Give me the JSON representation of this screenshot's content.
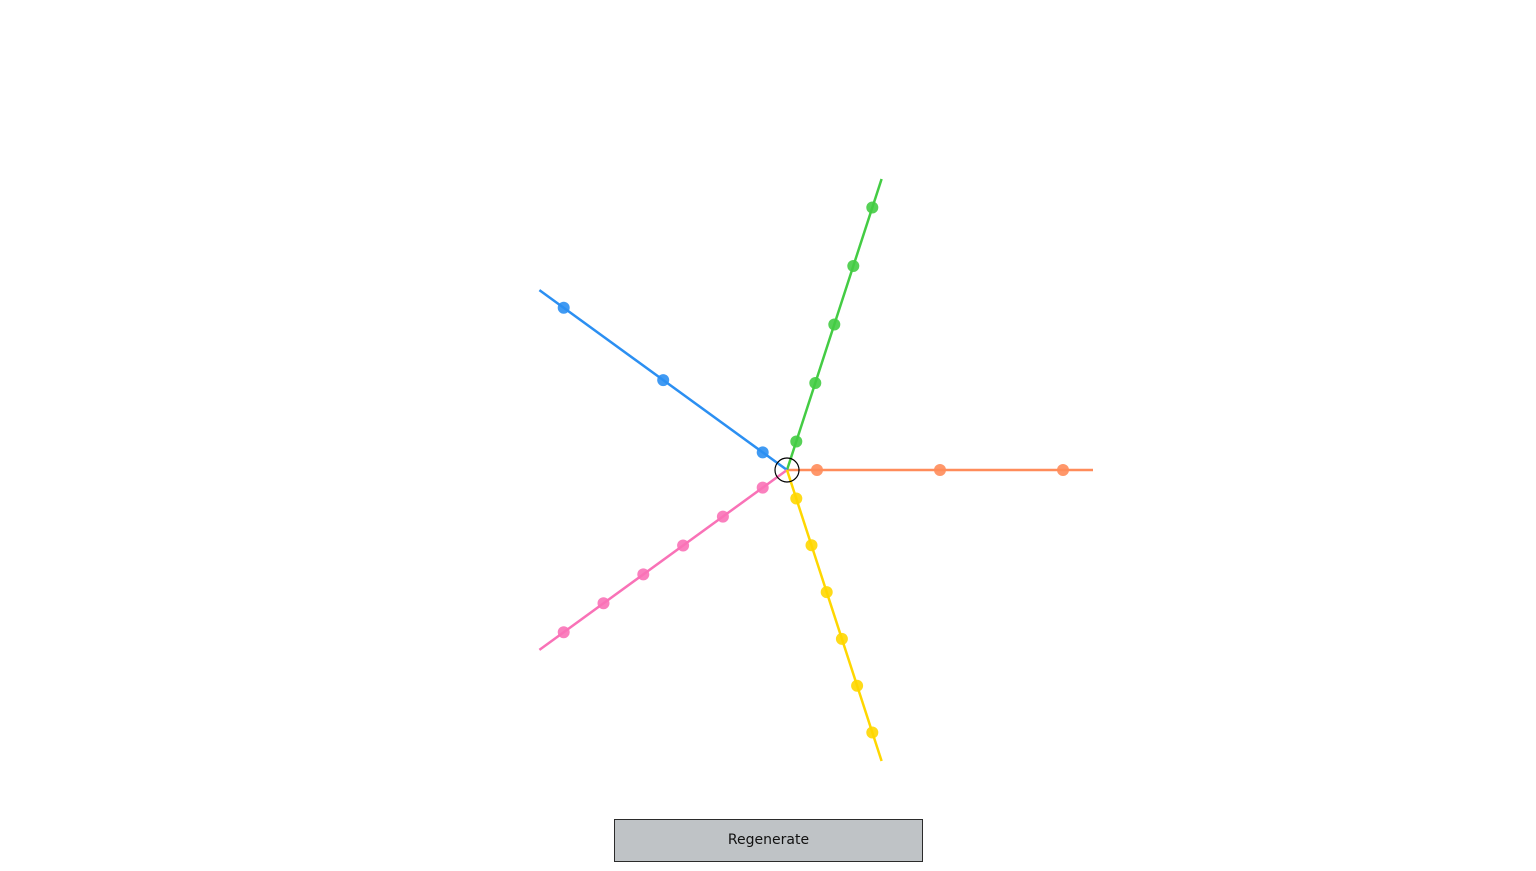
{
  "controls": {
    "regenerate_label": "Regenerate"
  },
  "diagram": {
    "hub": {
      "stroke": "#000000"
    },
    "spokes": [
      {
        "name": "orange-spoke",
        "color": "#ff8c5a",
        "angle_deg": 0,
        "dots": 3
      },
      {
        "name": "green-spoke",
        "color": "#44cc44",
        "angle_deg": 72,
        "dots": 5
      },
      {
        "name": "blue-spoke",
        "color": "#2b8ff2",
        "angle_deg": 144,
        "dots": 3
      },
      {
        "name": "pink-spoke",
        "color": "#f972b7",
        "angle_deg": 216,
        "dots": 6
      },
      {
        "name": "yellow-spoke",
        "color": "#ffd700",
        "angle_deg": 288,
        "dots": 6
      }
    ]
  }
}
